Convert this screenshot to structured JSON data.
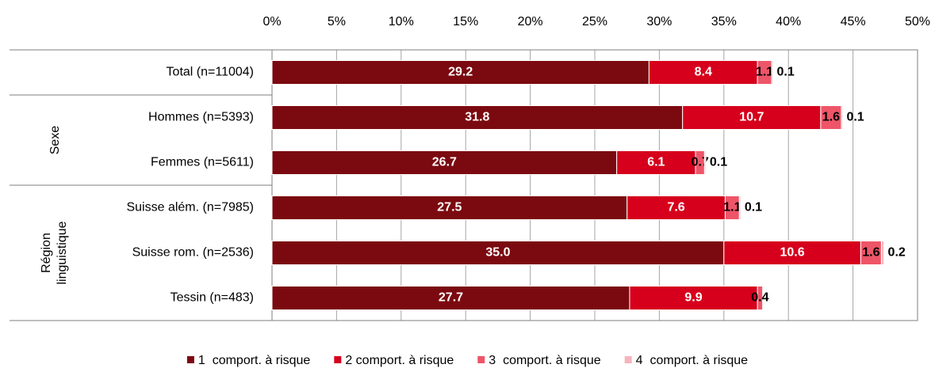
{
  "chart_data": {
    "type": "stacked-bar-horizontal",
    "categories": [
      "Total (n=11004)",
      "Hommes (n=5393)",
      "Femmes (n=5611)",
      "Suisse além. (n=7985)",
      "Suisse rom. (n=2536)",
      "Tessin (n=483)"
    ],
    "groups": [
      {
        "label": [
          "Sexe"
        ],
        "categories": [
          "Hommes (n=5393)",
          "Femmes (n=5611)"
        ]
      },
      {
        "label": [
          "Région",
          "linguistique"
        ],
        "categories": [
          "Suisse além. (n=7985)",
          "Suisse rom. (n=2536)",
          "Tessin (n=483)"
        ]
      }
    ],
    "series": [
      {
        "name": "1  comport. à risque",
        "color": "#7b0a10",
        "values": [
          29.2,
          31.8,
          26.7,
          27.5,
          35.0,
          27.7
        ],
        "value_labels": [
          "29.2",
          "31.8",
          "26.7",
          "27.5",
          "35.0",
          "27.7"
        ]
      },
      {
        "name": "2 comport. à risque",
        "color": "#d6001c",
        "values": [
          8.4,
          10.7,
          6.1,
          7.6,
          10.6,
          9.9
        ]
      },
      {
        "name": "3  comport. à risque",
        "color": "#ee5568",
        "values": [
          1.1,
          1.6,
          0.7,
          1.1,
          1.6,
          0.4
        ]
      },
      {
        "name": "4  comport. à risque",
        "color": "#f7b4bd",
        "values": [
          0.1,
          0.1,
          0.1,
          0.1,
          0.2,
          null
        ]
      }
    ],
    "xlim": [
      0,
      50
    ],
    "xticks": [
      {
        "value": 0,
        "label": "0%"
      },
      {
        "value": 5,
        "label": "5%"
      },
      {
        "value": 10,
        "label": "10%"
      },
      {
        "value": 15,
        "label": "15%"
      },
      {
        "value": 20,
        "label": "20%"
      },
      {
        "value": 25,
        "label": "25%"
      },
      {
        "value": 30,
        "label": "30%"
      },
      {
        "value": 35,
        "label": "35%"
      },
      {
        "value": 40,
        "label": "40%"
      },
      {
        "value": 45,
        "label": "45%"
      },
      {
        "value": 50,
        "label": "50%"
      }
    ],
    "grid": true,
    "legend": "bottom"
  }
}
